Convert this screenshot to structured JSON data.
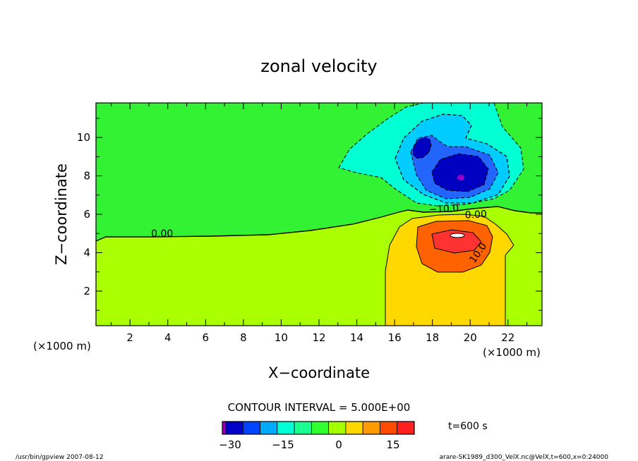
{
  "chart_data": {
    "type": "heatmap",
    "title": "zonal velocity",
    "xlabel": "X−coordinate",
    "ylabel": "Z−coordinate",
    "x_unit": "(×1000 m)",
    "x_unit_right": "(×1000 m)",
    "y_unit": "(×1000 m)",
    "xlim": [
      0.2,
      23.8
    ],
    "ylim": [
      0.2,
      11.8
    ],
    "x_ticks": [
      2,
      4,
      6,
      8,
      10,
      12,
      14,
      16,
      18,
      20,
      22
    ],
    "y_ticks": [
      2,
      4,
      6,
      8,
      10
    ],
    "contour_labels": [
      {
        "text": "0.00",
        "x": 3.7,
        "z": 5.0,
        "angle": 0
      },
      {
        "text": "−10.0",
        "x": 18.6,
        "z": 6.3,
        "angle": -3
      },
      {
        "text": "0.00",
        "x": 20.3,
        "z": 6.0,
        "angle": -3
      },
      {
        "text": "10.0",
        "x": 20.4,
        "z": 4.0,
        "angle": -55
      }
    ],
    "contour_interval_label": "CONTOUR INTERVAL = 5.000E+00",
    "time_label": "t=600  s",
    "colorbar": {
      "tick_labels": [
        "−30",
        "−15",
        "0",
        "15"
      ],
      "tick_values": [
        -30,
        -15,
        0,
        15
      ],
      "vmin": -35,
      "vmax": 20,
      "colors": [
        "#9b00b0",
        "#0000c8",
        "#0044ff",
        "#00aaff",
        "#00ffd5",
        "#1bff92",
        "#32ff32",
        "#a4ff00",
        "#ffd700",
        "#ff9a00",
        "#ff4b00",
        "#ff2020"
      ]
    },
    "fill_colors": {
      "green": "#33f233",
      "lightgreen": "#aaff00",
      "yellow": "#ffd800",
      "orange": "#ff6200",
      "red": "#ff3232",
      "cyan": "#00ffd2",
      "skyblue": "#00ccff",
      "blue": "#2266ff",
      "darkblue": "#0000c0",
      "purple": "#9c00c8"
    }
  },
  "footer": {
    "left": "/usr/bin/gpview   2007-08-12",
    "right": "arare-SK1989_d300_VelX.nc@VelX,t=600,x=0:24000"
  }
}
